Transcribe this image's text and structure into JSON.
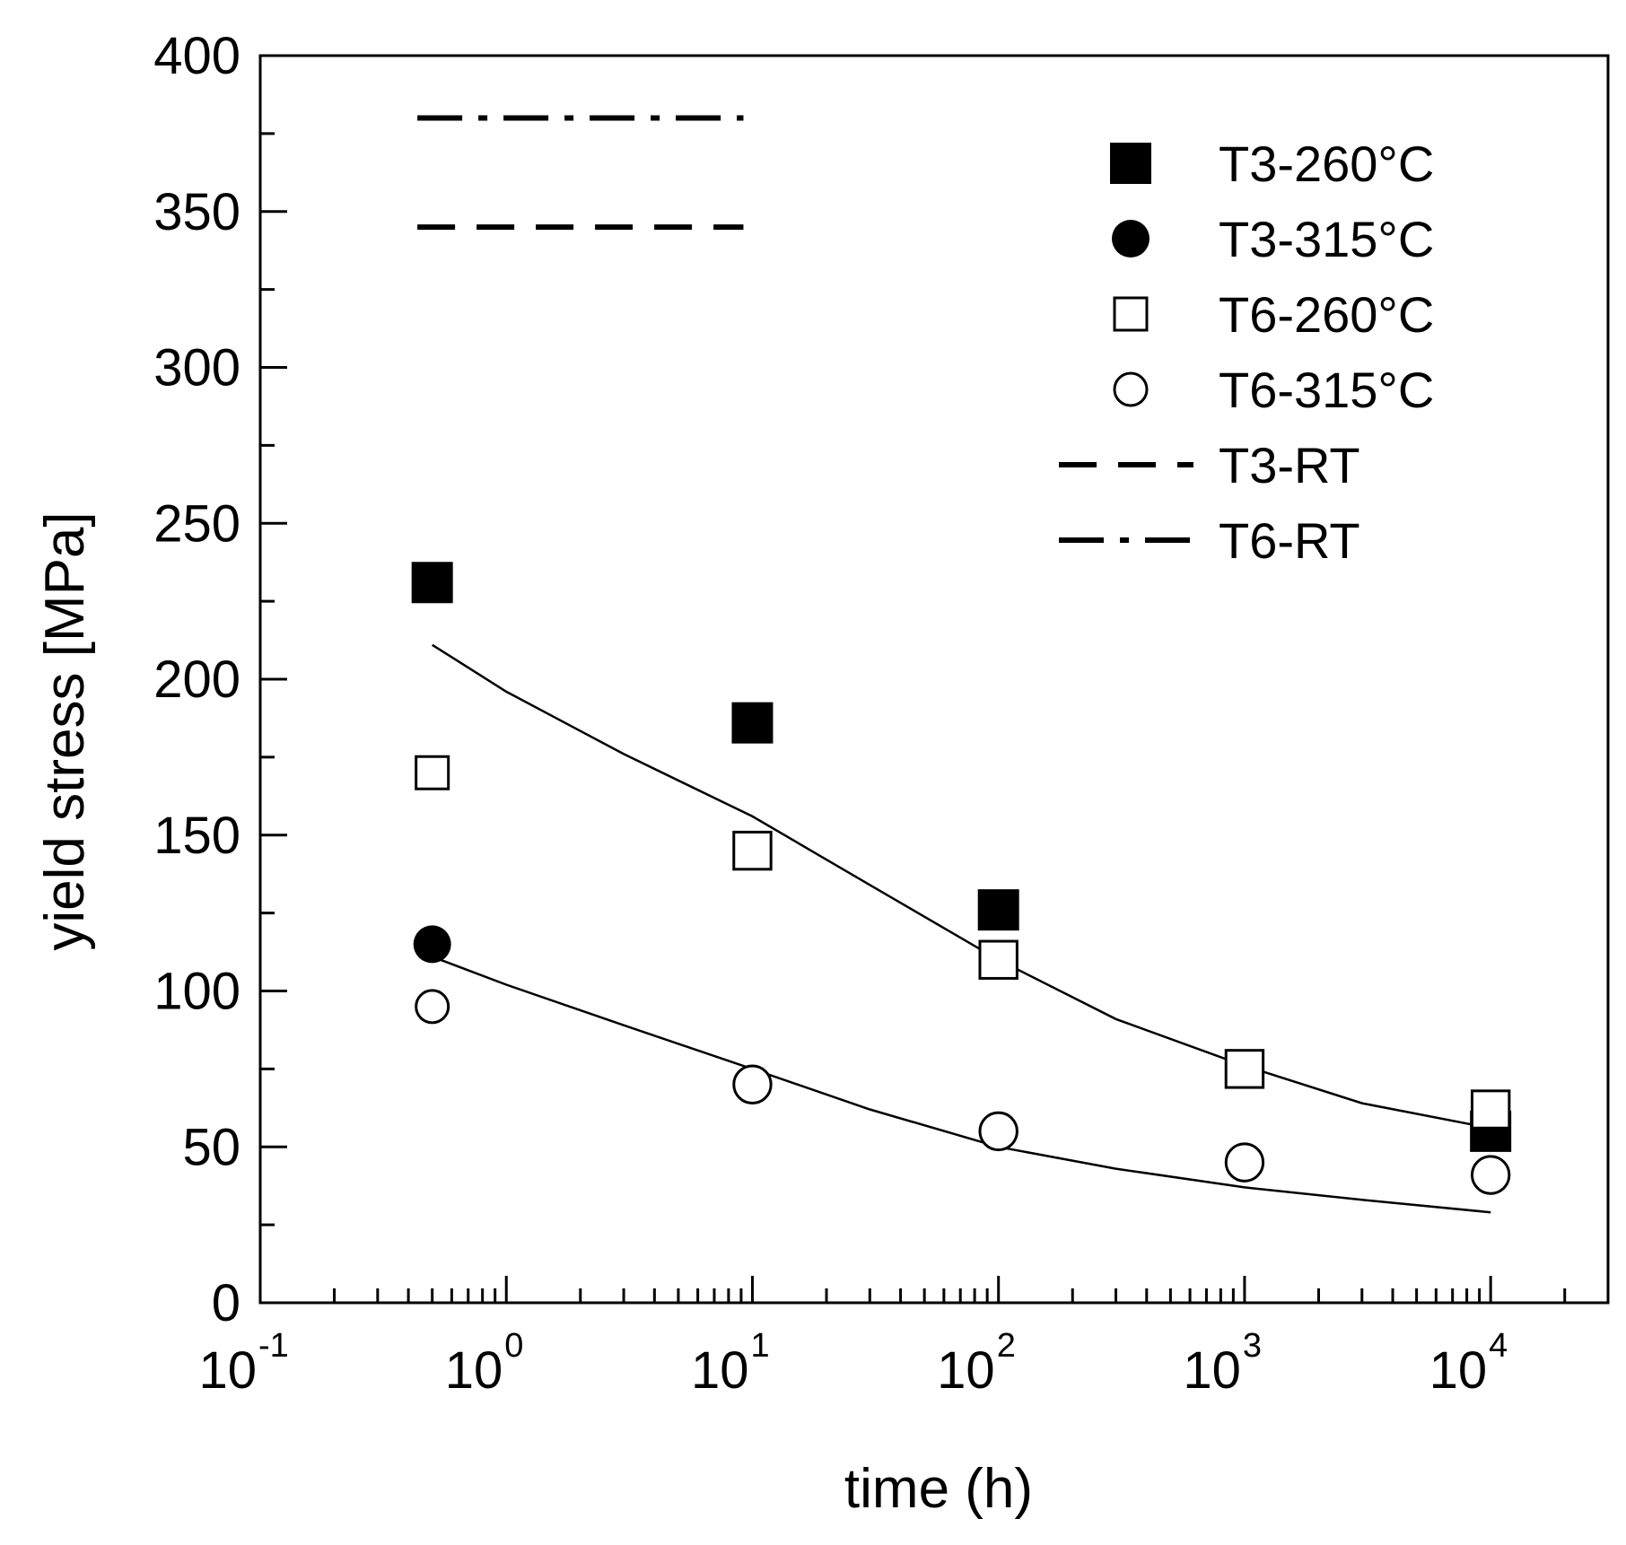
{
  "chart_data": {
    "type": "scatter",
    "title": "",
    "xlabel": "time (h)",
    "ylabel": "yield stress [MPa]",
    "xscale": "log",
    "xlim": [
      0.1,
      30000
    ],
    "ylim": [
      0,
      400
    ],
    "x_ticks": [
      {
        "base": "10",
        "exp": "-1",
        "value": 0.1
      },
      {
        "base": "10",
        "exp": "0",
        "value": 1
      },
      {
        "base": "10",
        "exp": "1",
        "value": 10
      },
      {
        "base": "10",
        "exp": "2",
        "value": 100
      },
      {
        "base": "10",
        "exp": "3",
        "value": 1000
      },
      {
        "base": "10",
        "exp": "4",
        "value": 10000
      }
    ],
    "y_ticks": [
      0,
      50,
      100,
      150,
      200,
      250,
      300,
      350,
      400
    ],
    "series": [
      {
        "name": "T3-260°C",
        "marker": "filled-square",
        "x": [
          0.5,
          10,
          100,
          10000
        ],
        "y": [
          231,
          186,
          126,
          55
        ]
      },
      {
        "name": "T3-315°C",
        "marker": "filled-circle",
        "x": [
          0.5
        ],
        "y": [
          115
        ]
      },
      {
        "name": "T6-260°C",
        "marker": "open-square",
        "x": [
          0.5,
          10,
          100,
          1000,
          10000
        ],
        "y": [
          170,
          145,
          110,
          75,
          62
        ]
      },
      {
        "name": "T6-315°C",
        "marker": "open-circle",
        "x": [
          0.5,
          10,
          100,
          1000,
          10000
        ],
        "y": [
          95,
          70,
          55,
          45,
          41
        ]
      }
    ],
    "reference_lines": [
      {
        "name": "T3-RT",
        "style": "dashed",
        "y": 345,
        "x_range": [
          0.4,
          10
        ]
      },
      {
        "name": "T6-RT",
        "style": "dash-dot",
        "y": 380,
        "x_range": [
          0.4,
          10
        ]
      }
    ],
    "fit_curves": [
      {
        "name": "fit-upper",
        "x": [
          0.5,
          1,
          3,
          10,
          30,
          100,
          300,
          1000,
          3000,
          10000
        ],
        "y": [
          211,
          196,
          176,
          156,
          134,
          110,
          91,
          76,
          64,
          56
        ]
      },
      {
        "name": "fit-lower",
        "x": [
          0.5,
          1,
          3,
          10,
          30,
          100,
          300,
          1000,
          3000,
          10000
        ],
        "y": [
          111,
          102,
          89,
          75,
          62,
          50,
          43,
          37,
          33,
          29
        ]
      }
    ],
    "legend": {
      "position": "top-right",
      "entries": [
        {
          "label": "T3-260°C",
          "symbol": "filled-square"
        },
        {
          "label": "T3-315°C",
          "symbol": "filled-circle"
        },
        {
          "label": "T6-260°C",
          "symbol": "open-square"
        },
        {
          "label": "T6-315°C",
          "symbol": "open-circle"
        },
        {
          "label": "T3-RT",
          "symbol": "dashed"
        },
        {
          "label": "T6-RT",
          "symbol": "dash-dot"
        }
      ]
    }
  }
}
